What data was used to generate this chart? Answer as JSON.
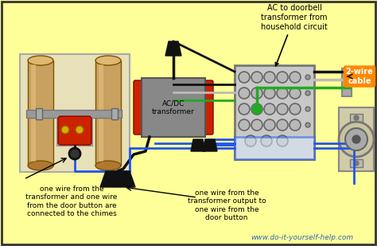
{
  "bg_color": "#FFFF99",
  "border_color": "#333333",
  "website": "www.do-it-yourself-help.com",
  "label_ac": "AC to doorbell\ntransformer from\nhousehold circuit",
  "label_chimes": "one wire from the\ntransformer and one wire\nfrom the door button are\nconnected to the chimes",
  "label_output": "one wire from the\ntransformer output to\none wire from the\ndoor button",
  "label_2wire": "2-wire\ncable",
  "label_transformer": "AC/DC\ntransformer",
  "wire_black": "#111111",
  "wire_blue": "#2255EE",
  "wire_green": "#22AA22",
  "wire_gray": "#AAAAAA",
  "box_light_gray": "#C8C8C8",
  "box_dark_gray": "#888888",
  "transformer_gray": "#888888",
  "transformer_red": "#CC2200",
  "chime_tan": "#C8A060",
  "chime_bg": "#E8E0B8",
  "orange_label": "#FF8800",
  "fig_width": 4.74,
  "fig_height": 3.09,
  "dpi": 100
}
